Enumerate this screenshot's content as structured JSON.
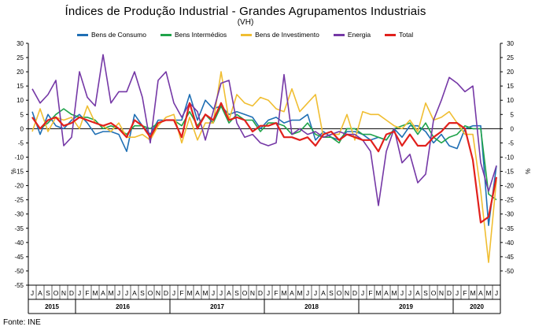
{
  "chart_data": {
    "type": "line",
    "title": "Índices de Produção Industrial - Grandes Agrupamentos Industriais",
    "subtitle": "(VH)",
    "ylabel_left": "%",
    "ylabel_right": "%",
    "ylim": [
      -55,
      30
    ],
    "yticks": [
      30,
      25,
      20,
      15,
      10,
      5,
      0,
      -5,
      -10,
      -15,
      -20,
      -25,
      -30,
      -35,
      -40,
      -45,
      -50,
      -55
    ],
    "yticks_right": [
      30,
      25,
      20,
      15,
      10,
      5,
      0,
      -5,
      -10,
      -15,
      -20,
      -25,
      -30,
      -35,
      -40,
      -45,
      -50
    ],
    "grid": false,
    "legend_position": "top",
    "source": "Fonte: INE",
    "month_labels": [
      "J",
      "A",
      "S",
      "O",
      "N",
      "D",
      "J",
      "F",
      "M",
      "A",
      "M",
      "J",
      "J",
      "A",
      "S",
      "O",
      "N",
      "D",
      "J",
      "F",
      "M",
      "A",
      "M",
      "J",
      "J",
      "A",
      "S",
      "O",
      "N",
      "D",
      "J",
      "F",
      "M",
      "A",
      "M",
      "J",
      "J",
      "A",
      "S",
      "O",
      "N",
      "D",
      "J",
      "F",
      "M",
      "A",
      "M",
      "J",
      "J",
      "A",
      "S",
      "O",
      "N",
      "D",
      "J",
      "F",
      "M",
      "A",
      "M",
      "J"
    ],
    "year_labels": [
      {
        "label": "2015",
        "start": 0,
        "end": 5
      },
      {
        "label": "2016",
        "start": 6,
        "end": 17
      },
      {
        "label": "2017",
        "start": 18,
        "end": 29
      },
      {
        "label": "2018",
        "start": 30,
        "end": 41
      },
      {
        "label": "2019",
        "start": 42,
        "end": 53
      },
      {
        "label": "2020",
        "start": 54,
        "end": 59
      }
    ],
    "series": [
      {
        "name": "Bens de Consumo",
        "color": "#1f6fb4",
        "values": [
          6,
          -2,
          5,
          1,
          0,
          3,
          5,
          2,
          -2,
          -1,
          -1,
          -2,
          -8,
          5,
          1,
          -2,
          3,
          3,
          3,
          3,
          12,
          3,
          10,
          7,
          8,
          5,
          6,
          5,
          4,
          0,
          3,
          4,
          2,
          3,
          3,
          5,
          -4,
          -1,
          -3,
          -4,
          -1,
          -1,
          -2,
          -4,
          -3,
          -4,
          0,
          -3,
          1,
          1,
          -1,
          -5,
          -2,
          -6,
          -7,
          0,
          1,
          1,
          -34,
          -13
        ]
      },
      {
        "name": "Bens Intermédios",
        "color": "#1fa34a",
        "values": [
          4,
          0,
          2,
          5,
          7,
          5,
          4,
          4,
          3,
          0,
          1,
          0,
          -2,
          1,
          1,
          0,
          2,
          3,
          3,
          1,
          6,
          1,
          5,
          2,
          8,
          2,
          5,
          3,
          3,
          -1,
          2,
          2,
          1,
          -2,
          -1,
          2,
          -2,
          -3,
          -3,
          -5,
          0,
          0,
          -2,
          -2,
          -3,
          -4,
          0,
          1,
          2,
          -2,
          2,
          -3,
          -5,
          -3,
          -2,
          1,
          0,
          0,
          -23,
          -25
        ]
      },
      {
        "name": "Bens de Investimento",
        "color": "#f0be32",
        "values": [
          -1,
          7,
          -1,
          4,
          3,
          4,
          0,
          8,
          2,
          1,
          -1,
          2,
          -3,
          -3,
          -2,
          -4,
          1,
          4,
          5,
          -5,
          4,
          -4,
          2,
          2,
          20,
          3,
          12,
          9,
          8,
          11,
          10,
          7,
          6,
          14,
          6,
          9,
          12,
          -3,
          -2,
          -2,
          5,
          -4,
          6,
          5,
          5,
          3,
          1,
          0,
          3,
          -1,
          9,
          3,
          4,
          6,
          2,
          -2,
          -2,
          -22,
          -47,
          -18
        ]
      },
      {
        "name": "Energia",
        "color": "#7538a6",
        "values": [
          14,
          9,
          12,
          17,
          -6,
          -3,
          20,
          11,
          8,
          26,
          9,
          13,
          13,
          20,
          11,
          -5,
          17,
          20,
          9,
          4,
          9,
          6,
          -4,
          6,
          16,
          17,
          2,
          -3,
          -2,
          -5,
          -6,
          -5,
          19,
          -2,
          0,
          -2,
          -1,
          -3,
          -2,
          -1,
          -2,
          -2,
          -4,
          -8,
          -27,
          -8,
          0,
          -12,
          -9,
          -19,
          -16,
          3,
          10,
          18,
          16,
          13,
          15,
          -12,
          -22,
          -13
        ]
      },
      {
        "name": "Total",
        "color": "#e1201c",
        "values": [
          4,
          0,
          3,
          4,
          1,
          2,
          4,
          3,
          2,
          1,
          2,
          0,
          -3,
          3,
          1,
          -3,
          2,
          3,
          3,
          -3,
          9,
          0,
          5,
          3,
          9,
          3,
          4,
          3,
          -1,
          1,
          1,
          2,
          -3,
          -3,
          -4,
          -3,
          -6,
          -2,
          -1,
          -4,
          -2,
          -3,
          -4,
          -4,
          -8,
          -2,
          -1,
          -6,
          -2,
          -6,
          -6,
          -3,
          -1,
          2,
          2,
          0,
          -11,
          -33,
          -31,
          -17
        ]
      }
    ]
  }
}
